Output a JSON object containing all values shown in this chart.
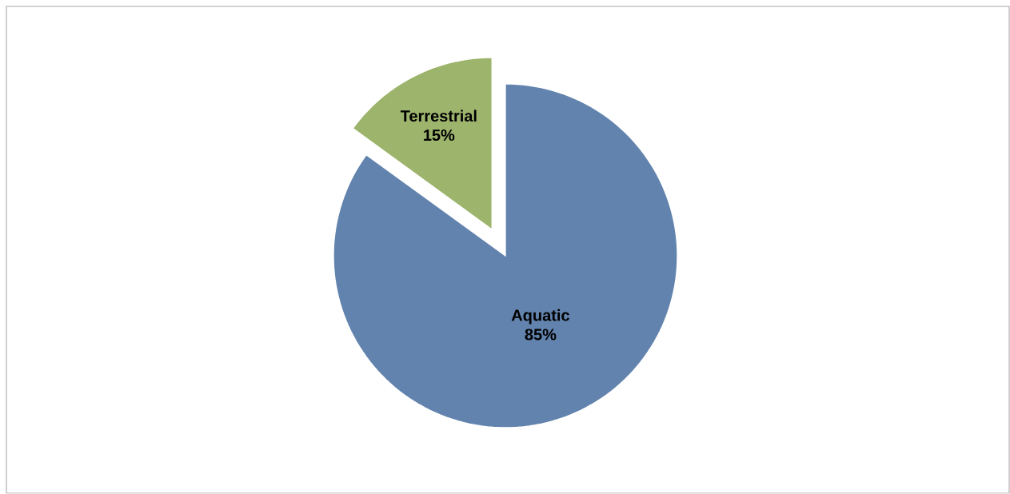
{
  "chart_data": {
    "type": "pie",
    "categories": [
      "Aquatic",
      "Terrestrial"
    ],
    "values": [
      85,
      15
    ],
    "value_labels": [
      "85%",
      "15%"
    ],
    "colors": [
      "#6283ad",
      "#9db46c"
    ]
  }
}
